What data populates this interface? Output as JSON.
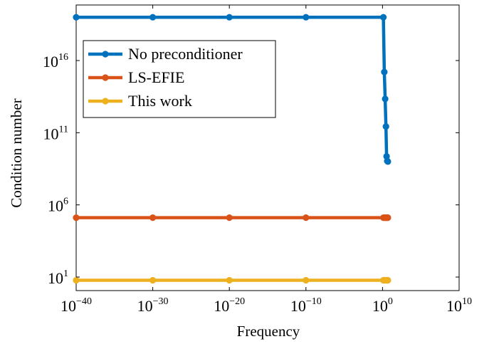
{
  "chart_data": {
    "type": "line",
    "xscale": "log",
    "yscale": "log",
    "xlabel": "Frequency",
    "ylabel": "Condition number",
    "xlim": [
      1e-40,
      10000000000.0
    ],
    "ylim": [
      1000000000.0,
      1e+19
    ],
    "x_ticks": [
      {
        "base": "10",
        "exp": "−40"
      },
      {
        "base": "10",
        "exp": "−30"
      },
      {
        "base": "10",
        "exp": "−20"
      },
      {
        "base": "10",
        "exp": "−10"
      },
      {
        "base": "10",
        "exp": "0"
      },
      {
        "base": "10",
        "exp": "10"
      }
    ],
    "x_tick_values": [
      1e-40,
      1e-30,
      1e-20,
      1e-10,
      1,
      10000000000.0
    ],
    "y_ticks": [
      {
        "base": "10",
        "exp": "1"
      },
      {
        "base": "10",
        "exp": "6"
      },
      {
        "base": "10",
        "exp": "11"
      },
      {
        "base": "10",
        "exp": "16"
      }
    ],
    "y_tick_values": [
      10,
      1000000.0,
      100000000000.0,
      1e+16
    ],
    "legend_position": "top-left",
    "grid": false,
    "series": [
      {
        "name": "No preconditioner",
        "color": "#0072BD",
        "points": [
          [
            1e-40,
            1e+19
          ],
          [
            1e-30,
            1e+19
          ],
          [
            1e-20,
            1e+19
          ],
          [
            1e-10,
            1e+19
          ],
          [
            1.3,
            1e+19
          ],
          [
            1.7,
            1600000000000000.0
          ],
          [
            2.2,
            22000000000000.0
          ],
          [
            2.8,
            270000000000.0
          ],
          [
            3.4,
            2300000000.0
          ],
          [
            4.1,
            1100000000.0
          ],
          [
            5.0,
            1000000000.0
          ]
        ]
      },
      {
        "name": "LS-EFIE",
        "color": "#D95319",
        "points": [
          [
            1e-40,
            130000.0
          ],
          [
            1e-30,
            130000.0
          ],
          [
            1e-20,
            130000.0
          ],
          [
            1e-10,
            130000.0
          ],
          [
            1.3,
            130000.0
          ],
          [
            1.7,
            130000.0
          ],
          [
            2.2,
            130000.0
          ],
          [
            2.8,
            130000.0
          ],
          [
            3.4,
            130000.0
          ],
          [
            4.1,
            130000.0
          ],
          [
            5.0,
            130000.0
          ]
        ]
      },
      {
        "name": "This work",
        "color": "#EDB120",
        "points": [
          [
            1e-40,
            6
          ],
          [
            1e-30,
            6
          ],
          [
            1e-20,
            6
          ],
          [
            1e-10,
            6
          ],
          [
            1.3,
            6
          ],
          [
            1.7,
            6
          ],
          [
            2.2,
            6
          ],
          [
            2.8,
            6
          ],
          [
            3.4,
            6
          ],
          [
            4.1,
            6
          ],
          [
            5.0,
            6
          ]
        ]
      }
    ]
  }
}
